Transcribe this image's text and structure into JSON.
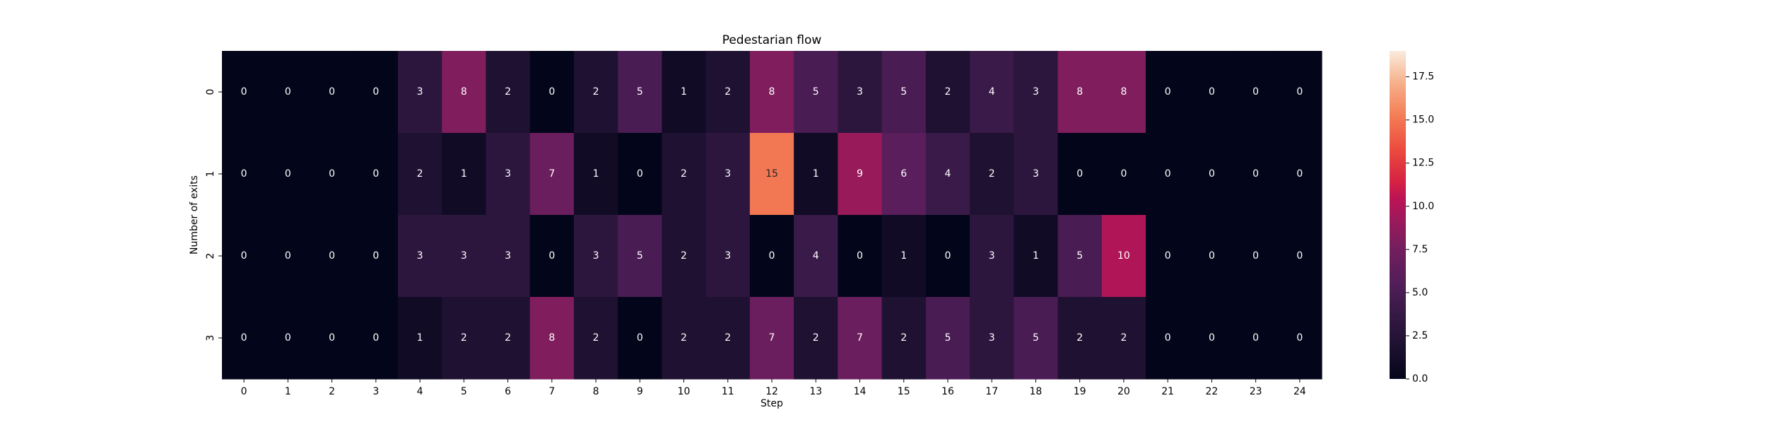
{
  "chart_data": {
    "type": "heatmap",
    "title": "Pedestarian flow",
    "xlabel": "Step",
    "ylabel": "Number of exits",
    "x_labels": [
      "0",
      "1",
      "2",
      "3",
      "4",
      "5",
      "6",
      "7",
      "8",
      "9",
      "10",
      "11",
      "12",
      "13",
      "14",
      "15",
      "16",
      "17",
      "18",
      "19",
      "20",
      "21",
      "22",
      "23",
      "24"
    ],
    "y_labels": [
      "0",
      "1",
      "2",
      "3"
    ],
    "values": [
      [
        0,
        0,
        0,
        0,
        3,
        8,
        2,
        0,
        2,
        5,
        1,
        2,
        8,
        5,
        3,
        5,
        2,
        4,
        3,
        8,
        8,
        0,
        0,
        0,
        0
      ],
      [
        0,
        0,
        0,
        0,
        2,
        1,
        3,
        7,
        1,
        0,
        2,
        3,
        15,
        1,
        9,
        6,
        4,
        2,
        3,
        0,
        0,
        0,
        0,
        0,
        0
      ],
      [
        0,
        0,
        0,
        0,
        3,
        3,
        3,
        0,
        3,
        5,
        2,
        3,
        0,
        4,
        0,
        1,
        0,
        3,
        1,
        5,
        10,
        0,
        0,
        0,
        0
      ],
      [
        0,
        0,
        0,
        0,
        1,
        2,
        2,
        8,
        2,
        0,
        2,
        2,
        7,
        2,
        7,
        2,
        5,
        3,
        5,
        2,
        2,
        0,
        0,
        0,
        0
      ]
    ],
    "annot": true,
    "colormap": "rocket",
    "vmin": 0,
    "vmax": 19,
    "colorbar_ticks": [
      0,
      2.5,
      5,
      7.5,
      10,
      12.5,
      15,
      17.5
    ],
    "colorbar_tick_labels": [
      "0.0",
      "2.5",
      "5.0",
      "7.5",
      "10.0",
      "12.5",
      "15.0",
      "17.5"
    ]
  }
}
